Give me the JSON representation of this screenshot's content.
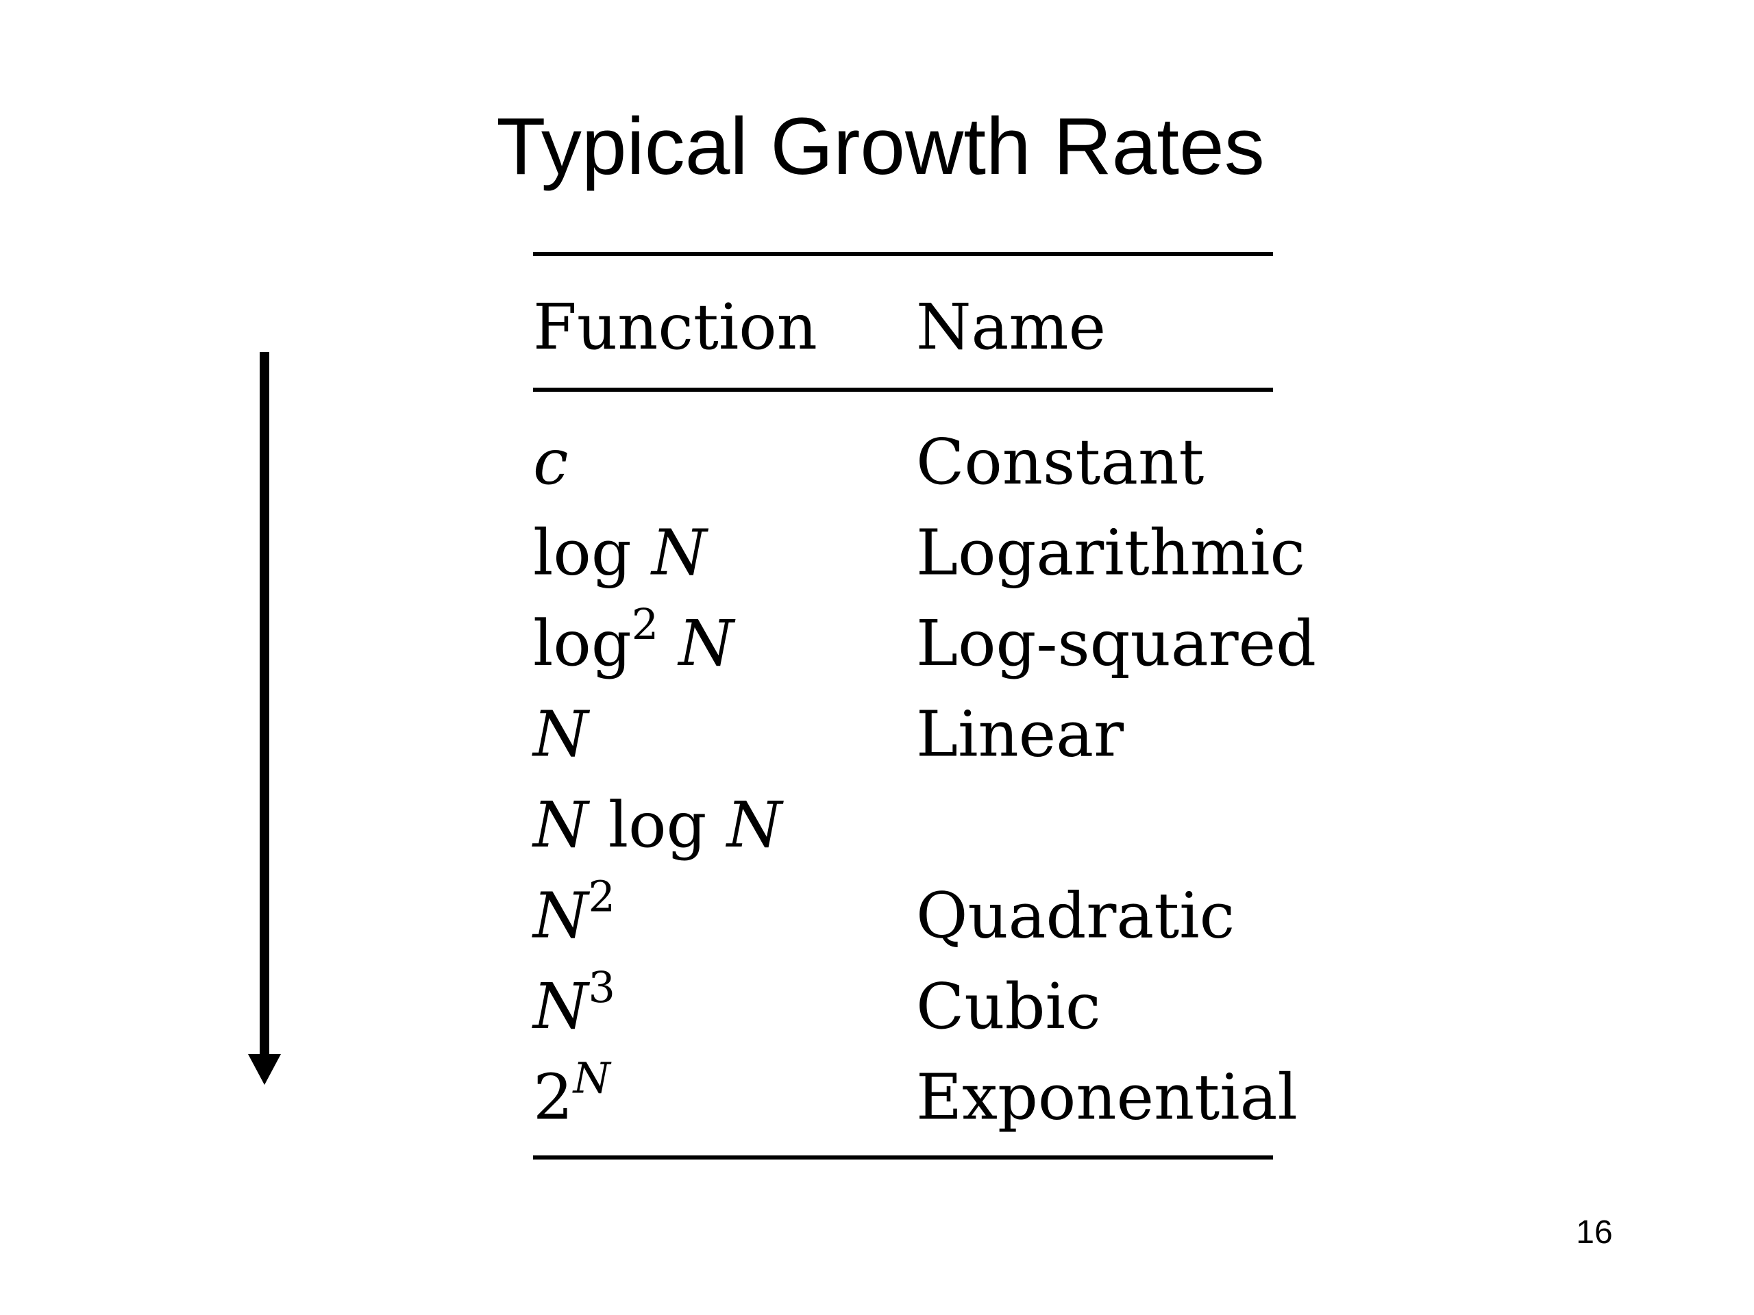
{
  "title": "Typical Growth Rates",
  "table": {
    "header": [
      "Function",
      "Name"
    ],
    "rows": [
      {
        "function": [
          {
            "text": "c",
            "italic": true
          }
        ],
        "name": "Constant"
      },
      {
        "function": [
          {
            "text": "log "
          },
          {
            "text": "N",
            "italic": true
          }
        ],
        "name": "Logarithmic"
      },
      {
        "function": [
          {
            "text": "log"
          },
          {
            "sup": "2"
          },
          {
            "text": " "
          },
          {
            "text": "N",
            "italic": true
          }
        ],
        "name": "Log-squared"
      },
      {
        "function": [
          {
            "text": "N",
            "italic": true
          }
        ],
        "name": "Linear"
      },
      {
        "function": [
          {
            "text": "N",
            "italic": true
          },
          {
            "text": " log "
          },
          {
            "text": "N",
            "italic": true
          }
        ],
        "name": null
      },
      {
        "function": [
          {
            "text": "N",
            "italic": true
          },
          {
            "sup": "2"
          }
        ],
        "name": "Quadratic"
      },
      {
        "function": [
          {
            "text": "N",
            "italic": true
          },
          {
            "sup": "3"
          }
        ],
        "name": "Cubic"
      },
      {
        "function": [
          {
            "text": "2"
          },
          {
            "sup": "N",
            "italic": true
          }
        ],
        "name": "Exponential"
      }
    ]
  },
  "page_number": "16"
}
